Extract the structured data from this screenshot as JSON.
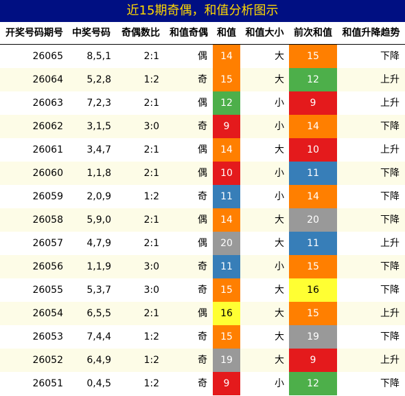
{
  "title": "近15期奇偶，和值分析图示",
  "headers": [
    "开奖号码期号",
    "中奖号码",
    "奇偶数比",
    "和值奇偶",
    "和值",
    "和值大小",
    "前次和值",
    "和值升降趋势"
  ],
  "colors": {
    "title_bg": "#000f82",
    "title_text": "#ffd800",
    "row_alt": "#fdfce7",
    "value_colors": {
      "9": "#e41a1c",
      "10": "#e41a1c",
      "11": "#377eb8",
      "12": "#4daf4a",
      "14": "#ff7f00",
      "15": "#ff7f00",
      "16": "#ffff33",
      "19": "#999999",
      "20": "#999999"
    }
  },
  "rows": [
    {
      "issue": "26065",
      "numbers": "8,5,1",
      "ratio": "2:1",
      "parity": "偶",
      "sum": "14",
      "size": "大",
      "prev_sum": "15",
      "trend": "下降"
    },
    {
      "issue": "26064",
      "numbers": "5,2,8",
      "ratio": "1:2",
      "parity": "奇",
      "sum": "15",
      "size": "大",
      "prev_sum": "12",
      "trend": "上升"
    },
    {
      "issue": "26063",
      "numbers": "7,2,3",
      "ratio": "2:1",
      "parity": "偶",
      "sum": "12",
      "size": "小",
      "prev_sum": "9",
      "trend": "上升"
    },
    {
      "issue": "26062",
      "numbers": "3,1,5",
      "ratio": "3:0",
      "parity": "奇",
      "sum": "9",
      "size": "小",
      "prev_sum": "14",
      "trend": "下降"
    },
    {
      "issue": "26061",
      "numbers": "3,4,7",
      "ratio": "2:1",
      "parity": "偶",
      "sum": "14",
      "size": "大",
      "prev_sum": "10",
      "trend": "上升"
    },
    {
      "issue": "26060",
      "numbers": "1,1,8",
      "ratio": "2:1",
      "parity": "偶",
      "sum": "10",
      "size": "小",
      "prev_sum": "11",
      "trend": "下降"
    },
    {
      "issue": "26059",
      "numbers": "2,0,9",
      "ratio": "1:2",
      "parity": "奇",
      "sum": "11",
      "size": "小",
      "prev_sum": "14",
      "trend": "下降"
    },
    {
      "issue": "26058",
      "numbers": "5,9,0",
      "ratio": "2:1",
      "parity": "偶",
      "sum": "14",
      "size": "大",
      "prev_sum": "20",
      "trend": "下降"
    },
    {
      "issue": "26057",
      "numbers": "4,7,9",
      "ratio": "2:1",
      "parity": "偶",
      "sum": "20",
      "size": "大",
      "prev_sum": "11",
      "trend": "上升"
    },
    {
      "issue": "26056",
      "numbers": "1,1,9",
      "ratio": "3:0",
      "parity": "奇",
      "sum": "11",
      "size": "小",
      "prev_sum": "15",
      "trend": "下降"
    },
    {
      "issue": "26055",
      "numbers": "5,3,7",
      "ratio": "3:0",
      "parity": "奇",
      "sum": "15",
      "size": "大",
      "prev_sum": "16",
      "trend": "下降"
    },
    {
      "issue": "26054",
      "numbers": "6,5,5",
      "ratio": "2:1",
      "parity": "偶",
      "sum": "16",
      "size": "大",
      "prev_sum": "15",
      "trend": "上升"
    },
    {
      "issue": "26053",
      "numbers": "7,4,4",
      "ratio": "1:2",
      "parity": "奇",
      "sum": "15",
      "size": "大",
      "prev_sum": "19",
      "trend": "下降"
    },
    {
      "issue": "26052",
      "numbers": "6,4,9",
      "ratio": "1:2",
      "parity": "奇",
      "sum": "19",
      "size": "大",
      "prev_sum": "9",
      "trend": "上升"
    },
    {
      "issue": "26051",
      "numbers": "0,4,5",
      "ratio": "1:2",
      "parity": "奇",
      "sum": "9",
      "size": "小",
      "prev_sum": "12",
      "trend": "下降"
    }
  ]
}
